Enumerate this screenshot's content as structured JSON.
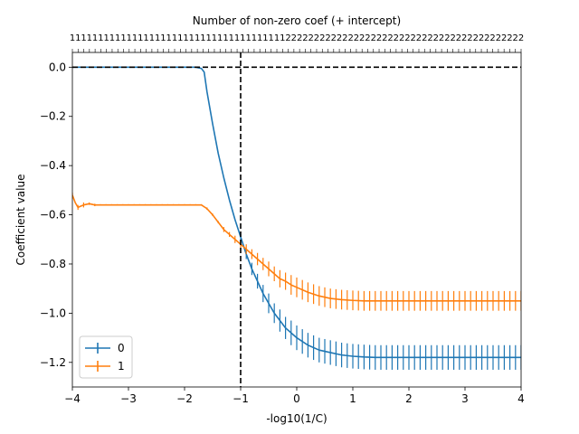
{
  "chart_data": {
    "type": "line",
    "title": "",
    "top_xlabel": "Number of non-zero coef (+ intercept)",
    "xlabel": "-log10(1/C)",
    "ylabel": "Coefficient value",
    "xlim": [
      -4,
      4
    ],
    "ylim": [
      -1.3,
      0.06
    ],
    "x_ticks": [
      -4,
      -3,
      -2,
      -1,
      0,
      1,
      2,
      3,
      4
    ],
    "x_tick_labels": [
      "−4",
      "−3",
      "−2",
      "−1",
      "0",
      "1",
      "2",
      "3",
      "4"
    ],
    "y_ticks": [
      0.0,
      -0.2,
      -0.4,
      -0.6,
      -0.8,
      -1.0,
      -1.2
    ],
    "y_tick_labels": [
      "0.0",
      "−0.2",
      "−0.4",
      "−0.6",
      "−0.8",
      "−1.0",
      "−1.2"
    ],
    "top_tick_labels": [
      "1",
      "1",
      "1",
      "1",
      "1",
      "1",
      "1",
      "1",
      "1",
      "1",
      "1",
      "1",
      "1",
      "1",
      "1",
      "1",
      "1",
      "1",
      "1",
      "1",
      "1",
      "1",
      "1",
      "1",
      "1",
      "1",
      "1",
      "1",
      "1",
      "1",
      "1",
      "1",
      "1",
      "1",
      "1",
      "1",
      "1",
      "1",
      "2",
      "2",
      "2",
      "2",
      "2",
      "2",
      "2",
      "2",
      "2",
      "2",
      "2",
      "2",
      "2",
      "2",
      "2",
      "2",
      "2",
      "2",
      "2",
      "2",
      "2",
      "2",
      "2",
      "2",
      "2",
      "2",
      "2",
      "2",
      "2",
      "2",
      "2",
      "2",
      "2",
      "2",
      "2",
      "2",
      "2",
      "2",
      "2",
      "2",
      "2",
      "2"
    ],
    "reference_lines": {
      "vertical_x": -1,
      "horizontal_y": 0
    },
    "legend": {
      "position": "lower-left"
    },
    "grid": false,
    "series": [
      {
        "name": "0",
        "color": "#1f77b4",
        "x": [
          -4.0,
          -3.5,
          -3.0,
          -2.5,
          -2.0,
          -1.8,
          -1.7,
          -1.65,
          -1.6,
          -1.5,
          -1.4,
          -1.3,
          -1.2,
          -1.1,
          -1.0,
          -0.9,
          -0.8,
          -0.7,
          -0.6,
          -0.5,
          -0.4,
          -0.3,
          -0.2,
          -0.1,
          0.0,
          0.2,
          0.4,
          0.6,
          0.8,
          1.0,
          1.2,
          1.4,
          1.6,
          1.8,
          2.0,
          2.5,
          3.0,
          3.5,
          4.0
        ],
        "y": [
          0.0,
          0.0,
          0.0,
          0.0,
          0.0,
          0.0,
          -0.005,
          -0.02,
          -0.1,
          -0.23,
          -0.35,
          -0.45,
          -0.54,
          -0.62,
          -0.69,
          -0.76,
          -0.82,
          -0.87,
          -0.92,
          -0.96,
          -1.0,
          -1.03,
          -1.06,
          -1.08,
          -1.1,
          -1.13,
          -1.15,
          -1.16,
          -1.17,
          -1.175,
          -1.178,
          -1.18,
          -1.18,
          -1.18,
          -1.18,
          -1.18,
          -1.18,
          -1.18,
          -1.18
        ],
        "err": [
          0.0,
          0.0,
          0.0,
          0.0,
          0.0,
          0.0,
          0.0,
          0.0,
          0.0,
          0.0,
          0.0,
          0.0,
          0.0,
          0.0,
          0.01,
          0.02,
          0.025,
          0.03,
          0.035,
          0.04,
          0.04,
          0.045,
          0.045,
          0.05,
          0.05,
          0.05,
          0.05,
          0.05,
          0.05,
          0.05,
          0.05,
          0.05,
          0.05,
          0.05,
          0.05,
          0.05,
          0.05,
          0.05,
          0.05
        ]
      },
      {
        "name": "1",
        "color": "#ff7f0e",
        "x": [
          -4.0,
          -3.95,
          -3.9,
          -3.85,
          -3.8,
          -3.7,
          -3.6,
          -3.5,
          -3.0,
          -2.5,
          -2.0,
          -1.8,
          -1.7,
          -1.6,
          -1.5,
          -1.4,
          -1.3,
          -1.2,
          -1.1,
          -1.0,
          -0.9,
          -0.8,
          -0.7,
          -0.6,
          -0.5,
          -0.4,
          -0.3,
          -0.2,
          -0.1,
          0.0,
          0.2,
          0.4,
          0.6,
          0.8,
          1.0,
          1.2,
          1.5,
          2.0,
          2.5,
          3.0,
          3.5,
          4.0
        ],
        "y": [
          -0.52,
          -0.55,
          -0.57,
          -0.565,
          -0.56,
          -0.555,
          -0.56,
          -0.56,
          -0.56,
          -0.56,
          -0.56,
          -0.56,
          -0.56,
          -0.575,
          -0.6,
          -0.63,
          -0.66,
          -0.68,
          -0.7,
          -0.72,
          -0.74,
          -0.76,
          -0.78,
          -0.8,
          -0.82,
          -0.84,
          -0.86,
          -0.87,
          -0.885,
          -0.895,
          -0.915,
          -0.93,
          -0.94,
          -0.945,
          -0.948,
          -0.95,
          -0.95,
          -0.95,
          -0.95,
          -0.95,
          -0.95,
          -0.95
        ],
        "err": [
          0.01,
          0.01,
          0.01,
          0.01,
          0.01,
          0.005,
          0.005,
          0.003,
          0.003,
          0.003,
          0.003,
          0.003,
          0.003,
          0.005,
          0.005,
          0.005,
          0.01,
          0.01,
          0.015,
          0.015,
          0.02,
          0.02,
          0.025,
          0.025,
          0.03,
          0.03,
          0.035,
          0.035,
          0.04,
          0.04,
          0.04,
          0.04,
          0.04,
          0.04,
          0.04,
          0.04,
          0.04,
          0.04,
          0.04,
          0.04,
          0.04,
          0.04
        ]
      }
    ]
  }
}
